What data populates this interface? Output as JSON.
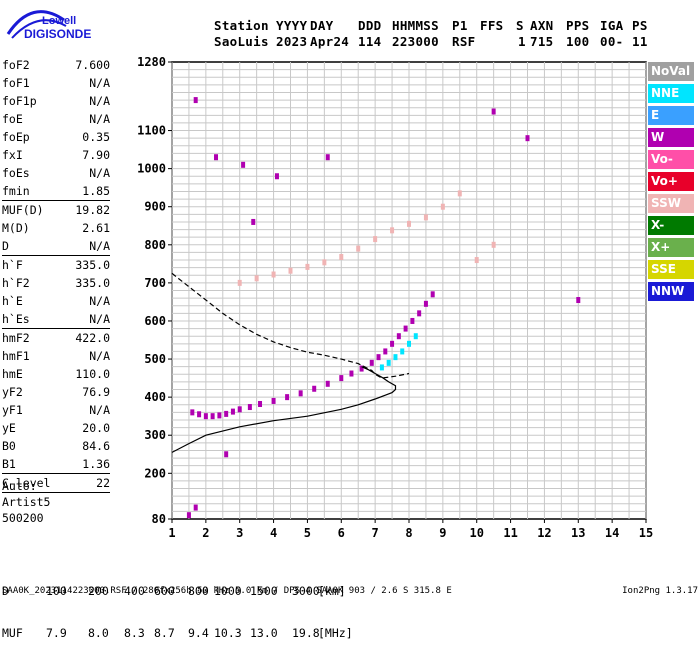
{
  "logo": {
    "line1": "Lowell",
    "line2": "DIGISONDE"
  },
  "header": {
    "labels": [
      "Station",
      "YYYY",
      "DAY",
      "DDD",
      "HHMMSS",
      "P1",
      "FFS",
      "S",
      "AXN",
      "PPS",
      "IGA",
      "PS"
    ],
    "values": [
      "SaoLuis",
      "2023",
      "Apr24",
      "114",
      "223000",
      "RSF",
      "",
      "1",
      "715",
      "100",
      "00-",
      "11"
    ]
  },
  "params": [
    {
      "name": "foF2",
      "value": "7.600"
    },
    {
      "name": "foF1",
      "value": "N/A"
    },
    {
      "name": "foF1p",
      "value": "N/A"
    },
    {
      "name": "foE",
      "value": "N/A"
    },
    {
      "name": "foEp",
      "value": "0.35"
    },
    {
      "name": "fxI",
      "value": "7.90"
    },
    {
      "name": "foEs",
      "value": "N/A"
    },
    {
      "name": "fmin",
      "value": "1.85"
    },
    {
      "name": "MUF(D)",
      "value": "19.82"
    },
    {
      "name": "M(D)",
      "value": "2.61"
    },
    {
      "name": "D",
      "value": "N/A"
    },
    {
      "name": "h`F",
      "value": "335.0"
    },
    {
      "name": "h`F2",
      "value": "335.0"
    },
    {
      "name": "h`E",
      "value": "N/A"
    },
    {
      "name": "h`Es",
      "value": "N/A"
    },
    {
      "name": "hmF2",
      "value": "422.0"
    },
    {
      "name": "hmF1",
      "value": "N/A"
    },
    {
      "name": "hmE",
      "value": "110.0"
    },
    {
      "name": "yF2",
      "value": "76.9"
    },
    {
      "name": "yF1",
      "value": "N/A"
    },
    {
      "name": "yE",
      "value": "20.0"
    },
    {
      "name": "B0",
      "value": "84.6"
    },
    {
      "name": "B1",
      "value": "1.36"
    },
    {
      "name": "C-level",
      "value": "22"
    }
  ],
  "auto": {
    "line1": "Auto:",
    "line2": "Artist5",
    "line3": "500200"
  },
  "legend": [
    {
      "label": "NoVal",
      "color": "#a0a0a0"
    },
    {
      "label": "NNE",
      "color": "#00e5ff"
    },
    {
      "label": "E",
      "color": "#3aa0ff"
    },
    {
      "label": "W",
      "color": "#b000b0"
    },
    {
      "label": "Vo-",
      "color": "#ff4fa8"
    },
    {
      "label": "Vo+",
      "color": "#e8002a"
    },
    {
      "label": "SSW",
      "color": "#f0b4b4"
    },
    {
      "label": "X-",
      "color": "#007a00"
    },
    {
      "label": "X+",
      "color": "#6ab04c"
    },
    {
      "label": "SSE",
      "color": "#d6d600"
    },
    {
      "label": "NNW",
      "color": "#1a1ad6"
    }
  ],
  "muf_table": {
    "d_label": "D",
    "d_values": [
      "100",
      "200",
      "400",
      "600",
      "800",
      "1000",
      "1500",
      "3000"
    ],
    "d_unit": "[km]",
    "m_label": "MUF",
    "m_values": [
      "7.9",
      "8.0",
      "8.3",
      "8.7",
      "9.4",
      "10.3",
      "13.0",
      "19.8"
    ],
    "m_unit": "[MHz]"
  },
  "footer": {
    "left": "SAA0K_2023114223000.RSF / 280fx256h 50 kHz 5.0 km / DPS-4 SAA0K 903 / 2.6 S 315.8 E",
    "right": "Ion2Png 1.3.17"
  },
  "chart_data": {
    "type": "scatter",
    "title": "",
    "xlabel": "",
    "ylabel": "",
    "xlim": [
      1,
      15
    ],
    "ylim": [
      80,
      1280
    ],
    "x_ticks": [
      1,
      2,
      3,
      4,
      5,
      6,
      7,
      8,
      9,
      10,
      11,
      12,
      13,
      14,
      15
    ],
    "y_ticks": [
      80,
      200,
      300,
      400,
      500,
      600,
      700,
      800,
      900,
      1000,
      1100,
      1280
    ],
    "grid": true,
    "series": [
      {
        "name": "F-trace (o)",
        "color": "#b000b0",
        "x": [
          1.6,
          1.8,
          2.0,
          2.2,
          2.4,
          2.6,
          2.8,
          3.0,
          3.3,
          3.6,
          4.0,
          4.4,
          4.8,
          5.2,
          5.6,
          6.0,
          6.3,
          6.6,
          6.9,
          7.1,
          7.3,
          7.5,
          7.7,
          7.9,
          8.1,
          8.3,
          8.5,
          8.7
        ],
        "y": [
          360,
          355,
          350,
          350,
          352,
          356,
          362,
          368,
          374,
          382,
          390,
          400,
          410,
          422,
          435,
          450,
          462,
          475,
          490,
          505,
          520,
          540,
          560,
          580,
          600,
          620,
          645,
          670
        ]
      },
      {
        "name": "F-trace (x)",
        "color": "#00e5ff",
        "x": [
          7.2,
          7.4,
          7.6,
          7.8,
          8.0,
          8.2
        ],
        "y": [
          478,
          490,
          505,
          520,
          540,
          560
        ]
      },
      {
        "name": "Multihop 2F",
        "color": "#f0b4b4",
        "x": [
          3.0,
          3.5,
          4.0,
          4.5,
          5.0,
          5.5,
          6.0,
          6.5,
          7.0,
          7.5,
          8.0,
          8.5,
          9.0,
          9.5,
          10.0,
          10.5
        ],
        "y": [
          700,
          712,
          722,
          732,
          742,
          754,
          768,
          790,
          815,
          838,
          855,
          872,
          900,
          935,
          760,
          800
        ]
      },
      {
        "name": "Scattered",
        "color": "#b000b0",
        "x": [
          1.5,
          1.7,
          1.7,
          2.3,
          2.6,
          3.1,
          3.4,
          10.5,
          11.5,
          13.0,
          4.1,
          5.6
        ],
        "y": [
          90,
          110,
          1180,
          1030,
          250,
          1010,
          860,
          1150,
          1080,
          655,
          980,
          1030
        ]
      }
    ],
    "curves": [
      {
        "name": "profile",
        "style": "solid",
        "x": [
          1.0,
          1.5,
          2.0,
          3.0,
          4.0,
          5.0,
          6.0,
          6.5,
          7.0,
          7.3,
          7.5,
          7.6,
          7.6,
          7.4,
          7.2,
          7.0,
          6.8,
          6.6
        ],
        "y": [
          255,
          278,
          300,
          322,
          338,
          350,
          368,
          380,
          395,
          405,
          412,
          420,
          430,
          440,
          452,
          462,
          472,
          480
        ]
      },
      {
        "name": "profile-dashed",
        "style": "dashed",
        "x": [
          1.0,
          1.5,
          2.0,
          2.5,
          3.0,
          3.5,
          4.0,
          4.5,
          5.0,
          5.5,
          6.0,
          6.5,
          6.9,
          7.0,
          7.2,
          7.6,
          8.0
        ],
        "y": [
          725,
          690,
          655,
          620,
          590,
          565,
          545,
          530,
          518,
          510,
          500,
          488,
          470,
          460,
          450,
          455,
          462
        ]
      }
    ]
  }
}
